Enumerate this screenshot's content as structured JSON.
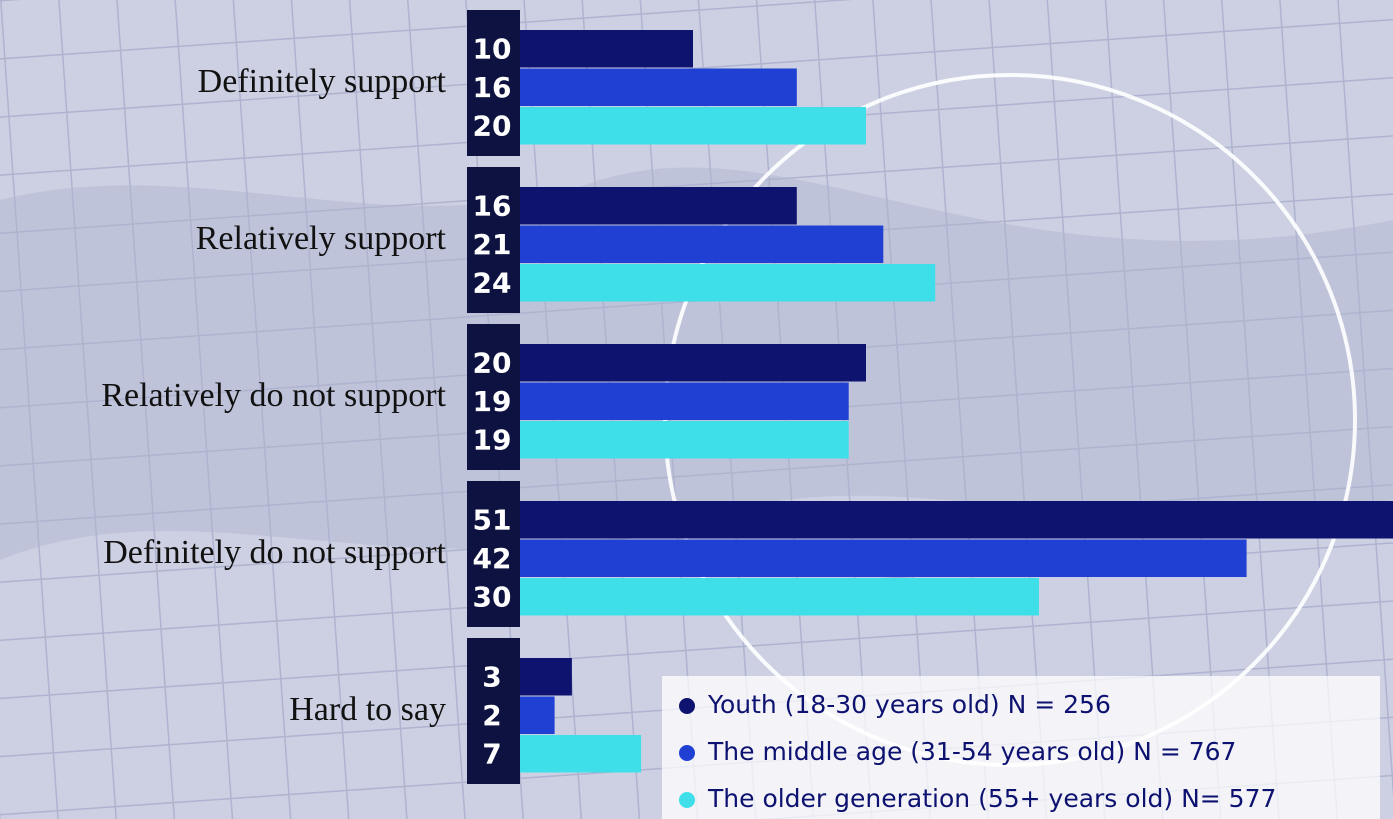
{
  "chart_data": {
    "type": "bar",
    "categories": [
      "Definitely support",
      "Relatively support",
      "Relatively do not support",
      "Definitely do not support",
      "Hard to say"
    ],
    "series": [
      {
        "name": "Youth (18-30 years old) N = 256",
        "color": "#0f1370",
        "values": [
          10,
          16,
          20,
          51,
          3
        ]
      },
      {
        "name": "The middle age  (31-54 years old) N = 767",
        "color": "#1f40d2",
        "values": [
          16,
          21,
          19,
          42,
          2
        ]
      },
      {
        "name": "The older generation (55+ years old) N= 577",
        "color": "#3fdfea",
        "values": [
          20,
          24,
          19,
          30,
          7
        ]
      }
    ]
  }
}
